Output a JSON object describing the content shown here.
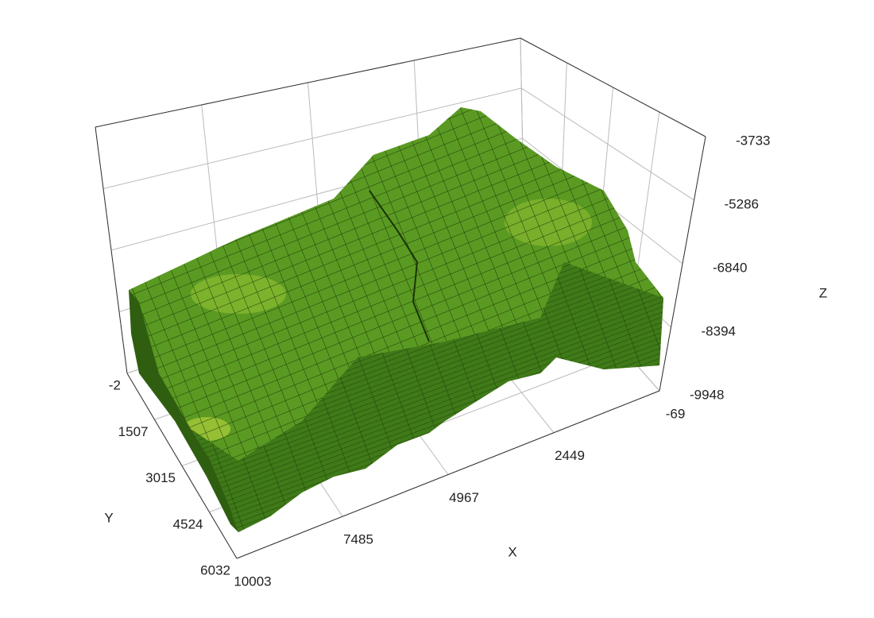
{
  "chart_data": {
    "type": "surface3d",
    "xlabel": "X",
    "ylabel": "Y",
    "zlabel": "Z",
    "xlim": [
      -69,
      10003
    ],
    "xticks": [
      -69,
      2449,
      4967,
      7485,
      10003
    ],
    "ylim": [
      -2,
      6032
    ],
    "yticks": [
      -2,
      1507,
      3015,
      4524,
      6032
    ],
    "zlim": [
      -9948,
      -3733
    ],
    "zticks": [
      -9948,
      -8394,
      -6840,
      -5286,
      -3733
    ],
    "color": "#5a9a22",
    "grid": true
  }
}
